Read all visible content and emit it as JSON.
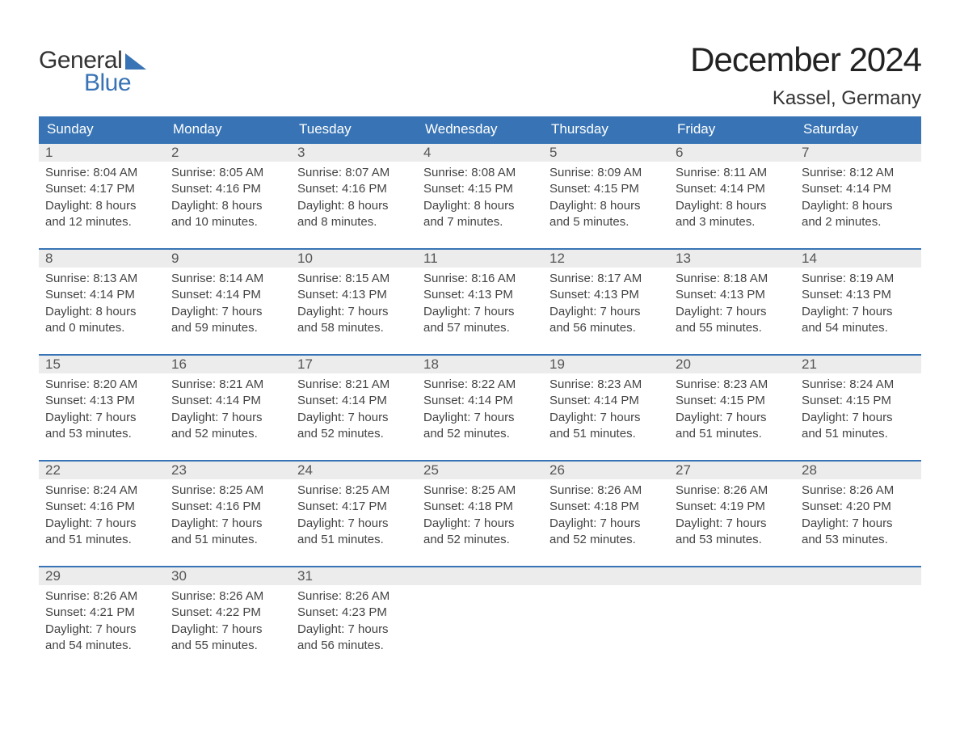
{
  "logo": {
    "text_general": "General",
    "text_blue": "Blue",
    "general_color": "#333333",
    "blue_color": "#3874b5"
  },
  "title": "December 2024",
  "location": "Kassel, Germany",
  "colors": {
    "header_bg": "#3874b5",
    "header_text": "#ffffff",
    "daynum_bg": "#ececec",
    "daynum_border": "#3874b5",
    "body_bg": "#ffffff",
    "text": "#444444"
  },
  "typography": {
    "title_fontsize": 42,
    "location_fontsize": 24,
    "weekday_fontsize": 17,
    "daynum_fontsize": 17,
    "body_fontsize": 15
  },
  "weekdays": [
    "Sunday",
    "Monday",
    "Tuesday",
    "Wednesday",
    "Thursday",
    "Friday",
    "Saturday"
  ],
  "weeks": [
    [
      {
        "n": "1",
        "sr": "Sunrise: 8:04 AM",
        "ss": "Sunset: 4:17 PM",
        "d1": "Daylight: 8 hours",
        "d2": "and 12 minutes."
      },
      {
        "n": "2",
        "sr": "Sunrise: 8:05 AM",
        "ss": "Sunset: 4:16 PM",
        "d1": "Daylight: 8 hours",
        "d2": "and 10 minutes."
      },
      {
        "n": "3",
        "sr": "Sunrise: 8:07 AM",
        "ss": "Sunset: 4:16 PM",
        "d1": "Daylight: 8 hours",
        "d2": "and 8 minutes."
      },
      {
        "n": "4",
        "sr": "Sunrise: 8:08 AM",
        "ss": "Sunset: 4:15 PM",
        "d1": "Daylight: 8 hours",
        "d2": "and 7 minutes."
      },
      {
        "n": "5",
        "sr": "Sunrise: 8:09 AM",
        "ss": "Sunset: 4:15 PM",
        "d1": "Daylight: 8 hours",
        "d2": "and 5 minutes."
      },
      {
        "n": "6",
        "sr": "Sunrise: 8:11 AM",
        "ss": "Sunset: 4:14 PM",
        "d1": "Daylight: 8 hours",
        "d2": "and 3 minutes."
      },
      {
        "n": "7",
        "sr": "Sunrise: 8:12 AM",
        "ss": "Sunset: 4:14 PM",
        "d1": "Daylight: 8 hours",
        "d2": "and 2 minutes."
      }
    ],
    [
      {
        "n": "8",
        "sr": "Sunrise: 8:13 AM",
        "ss": "Sunset: 4:14 PM",
        "d1": "Daylight: 8 hours",
        "d2": "and 0 minutes."
      },
      {
        "n": "9",
        "sr": "Sunrise: 8:14 AM",
        "ss": "Sunset: 4:14 PM",
        "d1": "Daylight: 7 hours",
        "d2": "and 59 minutes."
      },
      {
        "n": "10",
        "sr": "Sunrise: 8:15 AM",
        "ss": "Sunset: 4:13 PM",
        "d1": "Daylight: 7 hours",
        "d2": "and 58 minutes."
      },
      {
        "n": "11",
        "sr": "Sunrise: 8:16 AM",
        "ss": "Sunset: 4:13 PM",
        "d1": "Daylight: 7 hours",
        "d2": "and 57 minutes."
      },
      {
        "n": "12",
        "sr": "Sunrise: 8:17 AM",
        "ss": "Sunset: 4:13 PM",
        "d1": "Daylight: 7 hours",
        "d2": "and 56 minutes."
      },
      {
        "n": "13",
        "sr": "Sunrise: 8:18 AM",
        "ss": "Sunset: 4:13 PM",
        "d1": "Daylight: 7 hours",
        "d2": "and 55 minutes."
      },
      {
        "n": "14",
        "sr": "Sunrise: 8:19 AM",
        "ss": "Sunset: 4:13 PM",
        "d1": "Daylight: 7 hours",
        "d2": "and 54 minutes."
      }
    ],
    [
      {
        "n": "15",
        "sr": "Sunrise: 8:20 AM",
        "ss": "Sunset: 4:13 PM",
        "d1": "Daylight: 7 hours",
        "d2": "and 53 minutes."
      },
      {
        "n": "16",
        "sr": "Sunrise: 8:21 AM",
        "ss": "Sunset: 4:14 PM",
        "d1": "Daylight: 7 hours",
        "d2": "and 52 minutes."
      },
      {
        "n": "17",
        "sr": "Sunrise: 8:21 AM",
        "ss": "Sunset: 4:14 PM",
        "d1": "Daylight: 7 hours",
        "d2": "and 52 minutes."
      },
      {
        "n": "18",
        "sr": "Sunrise: 8:22 AM",
        "ss": "Sunset: 4:14 PM",
        "d1": "Daylight: 7 hours",
        "d2": "and 52 minutes."
      },
      {
        "n": "19",
        "sr": "Sunrise: 8:23 AM",
        "ss": "Sunset: 4:14 PM",
        "d1": "Daylight: 7 hours",
        "d2": "and 51 minutes."
      },
      {
        "n": "20",
        "sr": "Sunrise: 8:23 AM",
        "ss": "Sunset: 4:15 PM",
        "d1": "Daylight: 7 hours",
        "d2": "and 51 minutes."
      },
      {
        "n": "21",
        "sr": "Sunrise: 8:24 AM",
        "ss": "Sunset: 4:15 PM",
        "d1": "Daylight: 7 hours",
        "d2": "and 51 minutes."
      }
    ],
    [
      {
        "n": "22",
        "sr": "Sunrise: 8:24 AM",
        "ss": "Sunset: 4:16 PM",
        "d1": "Daylight: 7 hours",
        "d2": "and 51 minutes."
      },
      {
        "n": "23",
        "sr": "Sunrise: 8:25 AM",
        "ss": "Sunset: 4:16 PM",
        "d1": "Daylight: 7 hours",
        "d2": "and 51 minutes."
      },
      {
        "n": "24",
        "sr": "Sunrise: 8:25 AM",
        "ss": "Sunset: 4:17 PM",
        "d1": "Daylight: 7 hours",
        "d2": "and 51 minutes."
      },
      {
        "n": "25",
        "sr": "Sunrise: 8:25 AM",
        "ss": "Sunset: 4:18 PM",
        "d1": "Daylight: 7 hours",
        "d2": "and 52 minutes."
      },
      {
        "n": "26",
        "sr": "Sunrise: 8:26 AM",
        "ss": "Sunset: 4:18 PM",
        "d1": "Daylight: 7 hours",
        "d2": "and 52 minutes."
      },
      {
        "n": "27",
        "sr": "Sunrise: 8:26 AM",
        "ss": "Sunset: 4:19 PM",
        "d1": "Daylight: 7 hours",
        "d2": "and 53 minutes."
      },
      {
        "n": "28",
        "sr": "Sunrise: 8:26 AM",
        "ss": "Sunset: 4:20 PM",
        "d1": "Daylight: 7 hours",
        "d2": "and 53 minutes."
      }
    ],
    [
      {
        "n": "29",
        "sr": "Sunrise: 8:26 AM",
        "ss": "Sunset: 4:21 PM",
        "d1": "Daylight: 7 hours",
        "d2": "and 54 minutes."
      },
      {
        "n": "30",
        "sr": "Sunrise: 8:26 AM",
        "ss": "Sunset: 4:22 PM",
        "d1": "Daylight: 7 hours",
        "d2": "and 55 minutes."
      },
      {
        "n": "31",
        "sr": "Sunrise: 8:26 AM",
        "ss": "Sunset: 4:23 PM",
        "d1": "Daylight: 7 hours",
        "d2": "and 56 minutes."
      },
      null,
      null,
      null,
      null
    ]
  ]
}
